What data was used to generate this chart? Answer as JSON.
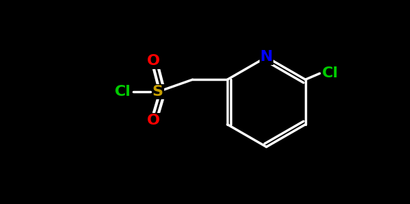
{
  "background_color": "#000000",
  "bond_color": "#ffffff",
  "bond_width": 2.5,
  "atom_colors": {
    "O": "#ff0000",
    "S": "#c8a000",
    "Cl_green": "#00cc00",
    "N": "#0000ff",
    "C": "#ffffff"
  },
  "font_size_atoms": 18,
  "font_size_large": 22
}
